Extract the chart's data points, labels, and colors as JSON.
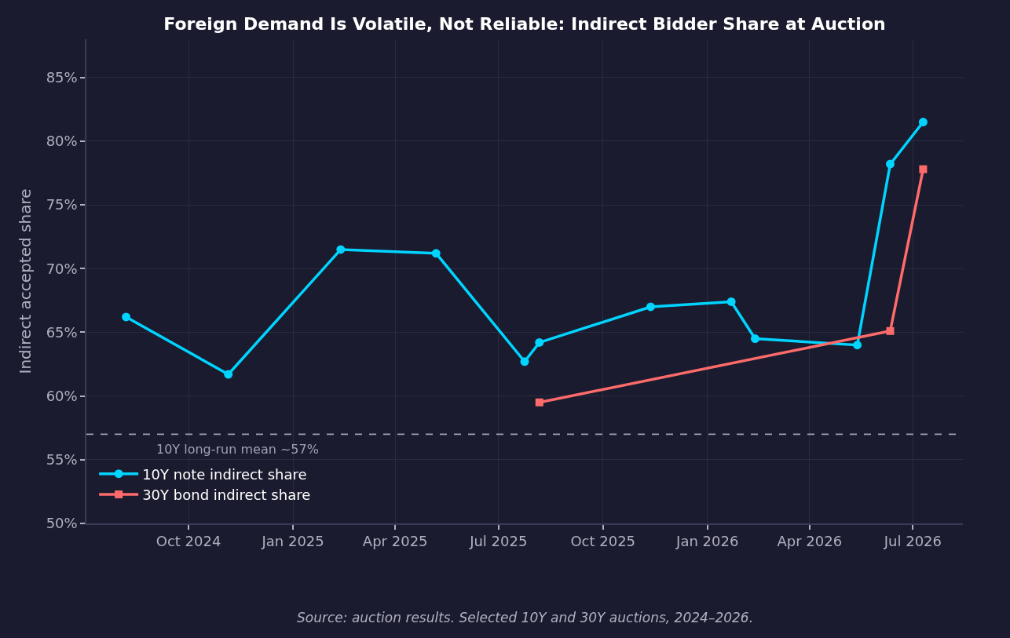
{
  "chart_data": {
    "type": "line",
    "title": "Foreign Demand Is Volatile, Not Reliable: Indirect Bidder Share at Auction",
    "ylabel": "Indirect accepted share",
    "annotations": [
      "Source: auction results. Selected 10Y and 30Y auctions, 2024–2026."
    ],
    "series": [
      {
        "name": "10Y note indirect share",
        "color": "#00d4ff",
        "marker": "circle",
        "x": [
          "2024-08-07",
          "2024-11-05",
          "2025-02-12",
          "2025-05-07",
          "2025-07-24",
          "2025-08-06",
          "2025-11-12",
          "2026-01-22",
          "2026-02-12",
          "2026-05-13",
          "2026-06-11",
          "2026-07-10"
        ],
        "values": [
          66.2,
          61.7,
          71.5,
          71.2,
          62.7,
          64.2,
          67.0,
          67.4,
          64.5,
          64.0,
          78.2,
          81.5
        ]
      },
      {
        "name": "30Y bond indirect share",
        "color": "#ff6b6b",
        "marker": "square",
        "x": [
          "2025-08-06",
          "2026-06-11",
          "2026-07-10"
        ],
        "values": [
          59.5,
          65.1,
          77.8
        ]
      }
    ],
    "xlim": [
      "2024-07-03",
      "2026-08-14"
    ],
    "xticks": [
      {
        "value": "2024-10-01",
        "label": "Oct 2024"
      },
      {
        "value": "2025-01-01",
        "label": "Jan 2025"
      },
      {
        "value": "2025-04-01",
        "label": "Apr 2025"
      },
      {
        "value": "2025-07-01",
        "label": "Jul 2025"
      },
      {
        "value": "2025-10-01",
        "label": "Oct 2025"
      },
      {
        "value": "2026-01-01",
        "label": "Jan 2026"
      },
      {
        "value": "2026-04-01",
        "label": "Apr 2026"
      },
      {
        "value": "2026-07-01",
        "label": "Jul 2026"
      }
    ],
    "ylim": [
      50,
      88
    ],
    "yticks": [
      {
        "value": 50,
        "label": "50%"
      },
      {
        "value": 55,
        "label": "55%"
      },
      {
        "value": 60,
        "label": "60%"
      },
      {
        "value": 65,
        "label": "65%"
      },
      {
        "value": 70,
        "label": "70%"
      },
      {
        "value": 75,
        "label": "75%"
      },
      {
        "value": 80,
        "label": "80%"
      },
      {
        "value": 85,
        "label": "85%"
      }
    ],
    "ref_lines": [
      {
        "axis": "y",
        "value": 57,
        "label": "10Y long-run mean ~57%",
        "color": "#a0a0b4",
        "line_style": "dashed"
      }
    ],
    "grid": true,
    "legend": "bottom left",
    "line_style": "solid"
  }
}
